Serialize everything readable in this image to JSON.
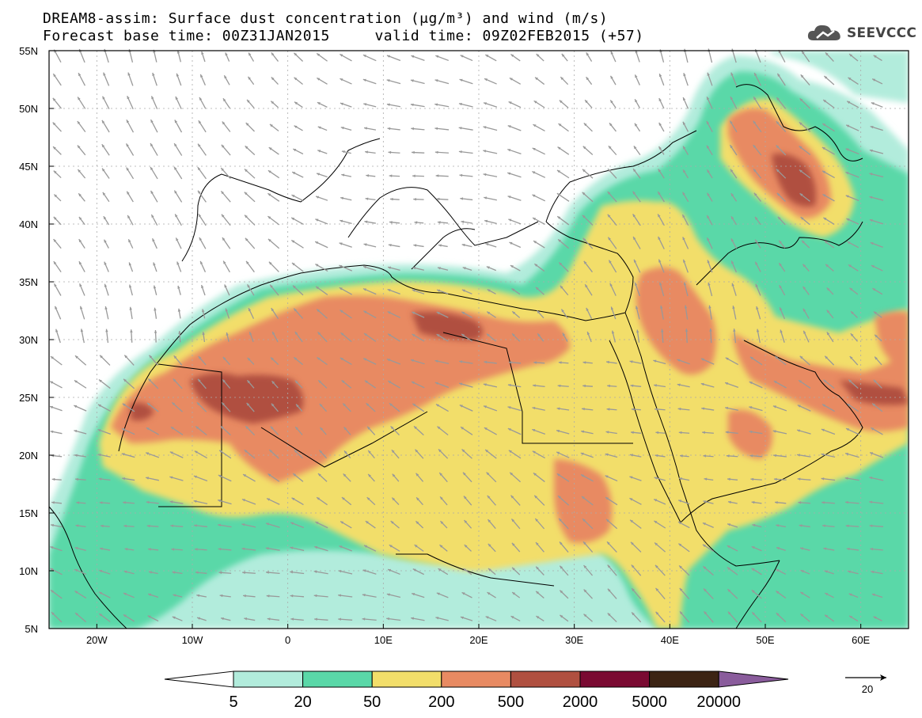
{
  "header": {
    "title_line1": "DREAM8-assim: Surface dust concentration (μg/m³) and wind (m/s)",
    "title_line2": "Forecast base time: 00Z31JAN2015     valid time: 09Z02FEB2015 (+57)"
  },
  "logo": {
    "text": "SEEVCCC",
    "icon": "cloud-logo-icon"
  },
  "map": {
    "lon_range": [
      -25,
      65
    ],
    "lat_range": [
      5,
      55
    ],
    "lat_labels": [
      "5N",
      "10N",
      "15N",
      "20N",
      "25N",
      "30N",
      "35N",
      "40N",
      "45N",
      "50N",
      "55N"
    ],
    "lon_labels": [
      "20W",
      "10W",
      "0",
      "10E",
      "20E",
      "30E",
      "40E",
      "50E",
      "60E"
    ],
    "gridlines": true
  },
  "legend": {
    "labels": [
      "5",
      "20",
      "50",
      "200",
      "500",
      "2000",
      "5000",
      "20000"
    ],
    "colors": [
      "#ffffff",
      "#b2ecdc",
      "#5ad8a8",
      "#f2de6a",
      "#e88a62",
      "#b05040",
      "#7a0a32",
      "#3c2414",
      "#8a5c9c"
    ]
  },
  "wind_scale": {
    "value": "20",
    "icon": "wind-reference-arrow-icon"
  }
}
